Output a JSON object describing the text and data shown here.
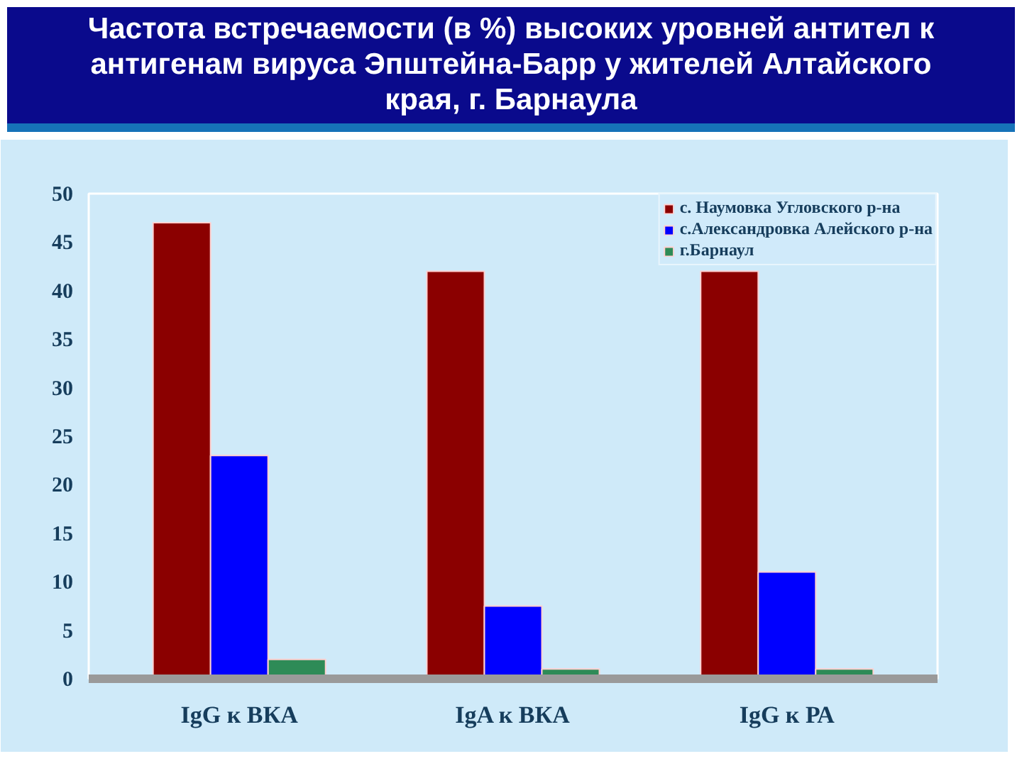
{
  "chart_data": {
    "type": "bar",
    "title": "Частота встречаемости (в %) высоких уровней антител к антигенам вируса Эпштейна-Барр у жителей Алтайского края, г. Барнаула",
    "categories": [
      "IgG к ВКА",
      "IgA к ВКА",
      "IgG к РА"
    ],
    "series": [
      {
        "name": "с. Наумовка Угловского р-на",
        "color": "#8b0000",
        "values": [
          47,
          42,
          42
        ]
      },
      {
        "name": "с.Александровка Алейского р-на",
        "color": "#0000ff",
        "values": [
          23,
          7.5,
          11
        ]
      },
      {
        "name": "г.Барнаул",
        "color": "#2e8b57",
        "values": [
          2,
          1,
          1
        ]
      }
    ],
    "ylim": [
      0,
      50
    ],
    "yticks": [
      0,
      5,
      10,
      15,
      20,
      25,
      30,
      35,
      40,
      45,
      50
    ],
    "legend": "top right"
  }
}
